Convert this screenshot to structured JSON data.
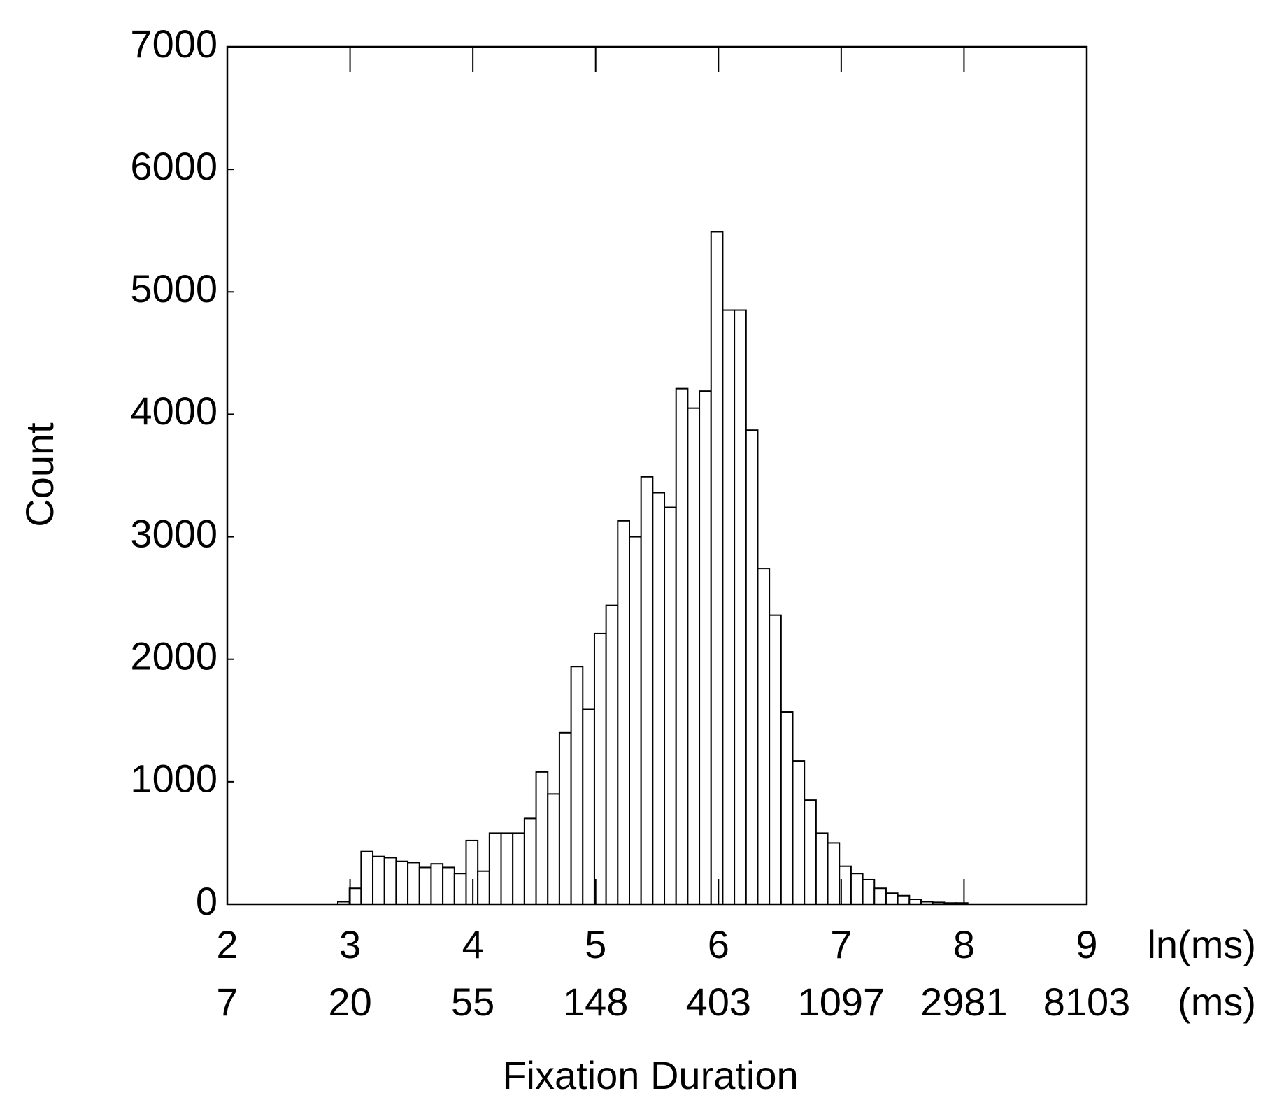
{
  "chart_data": {
    "type": "histogram",
    "xlabel": "Fixation Duration",
    "ylabel": "Count",
    "x_unit": "ln(ms)",
    "x2_unit": "(ms)",
    "bins": [
      2.9,
      2.995,
      3.09,
      3.185,
      3.28,
      3.375,
      3.47,
      3.565,
      3.66,
      3.755,
      3.85,
      3.945,
      4.04,
      4.135,
      4.23,
      4.325,
      4.42,
      4.515,
      4.61,
      4.705,
      4.8,
      4.895,
      4.99,
      5.085,
      5.18,
      5.275,
      5.37,
      5.465,
      5.56,
      5.655,
      5.75,
      5.845,
      5.94,
      6.035,
      6.13,
      6.225,
      6.32,
      6.415,
      6.51,
      6.605,
      6.7,
      6.795,
      6.89,
      6.985,
      7.08,
      7.175,
      7.27,
      7.365,
      7.46,
      7.555,
      7.65,
      7.745,
      7.84,
      7.935,
      8.03
    ],
    "values": [
      20,
      130,
      430,
      390,
      380,
      350,
      340,
      300,
      330,
      300,
      250,
      520,
      270,
      580,
      580,
      580,
      700,
      1080,
      900,
      1400,
      1940,
      1590,
      2210,
      2440,
      3130,
      3000,
      3490,
      3360,
      3240,
      4210,
      4050,
      4190,
      5490,
      4850,
      4850,
      3870,
      2740,
      2360,
      1570,
      1170,
      850,
      580,
      500,
      310,
      250,
      200,
      130,
      90,
      70,
      40,
      20,
      15,
      10,
      10
    ],
    "color": "#ffffff",
    "edgecolor": "#000000",
    "xlim": [
      2,
      9
    ],
    "xticks": [
      2,
      3,
      4,
      5,
      6,
      7,
      8,
      9
    ],
    "x2ticks": [
      {
        "value": 2,
        "label": "7"
      },
      {
        "value": 3,
        "label": "20"
      },
      {
        "value": 4,
        "label": "55"
      },
      {
        "value": 5,
        "label": "148"
      },
      {
        "value": 6,
        "label": "403"
      },
      {
        "value": 7,
        "label": "1097"
      },
      {
        "value": 8,
        "label": "2981"
      },
      {
        "value": 9,
        "label": "8103"
      }
    ],
    "ylim": [
      0,
      7000
    ],
    "yticks": [
      0,
      1000,
      2000,
      3000,
      4000,
      5000,
      6000,
      7000
    ]
  }
}
